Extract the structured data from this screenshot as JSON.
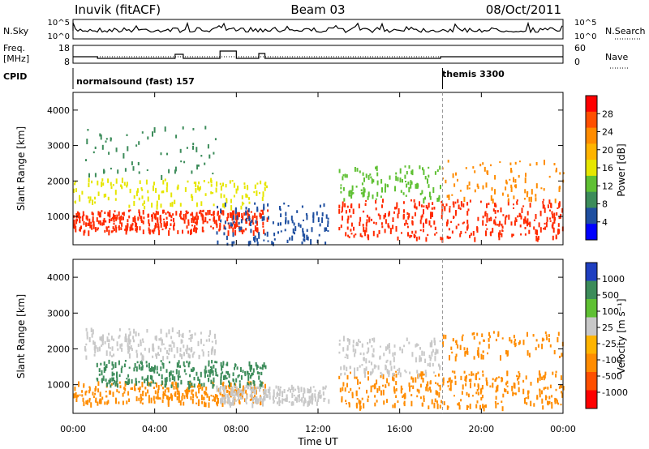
{
  "header": {
    "station": "Inuvik (fitACF)",
    "beam": "Beam 03",
    "date": "08/Oct/2011"
  },
  "strips": {
    "nsky_label": "N.Sky",
    "nsearch_label": "N.Search",
    "nsky_ticks": [
      "10^5",
      "10^0"
    ],
    "nsearch_ticks": [
      "10^5",
      "10^0"
    ],
    "freq_label": "Freq.",
    "freq_unit": "[MHz]",
    "freq_ticks": [
      "18",
      "8"
    ],
    "nave_label": "Nave",
    "nave_ticks": [
      "60",
      "0"
    ],
    "cpid_label": "CPID",
    "cpid_segments": [
      {
        "name": "normalsound (fast) 157",
        "start_hour": 0
      },
      {
        "name": "themis 3300",
        "start_hour": 18.1
      }
    ]
  },
  "chart_data": [
    {
      "type": "heatmap",
      "title": "",
      "xlabel": "Time UT",
      "ylabel": "Slant Range [km]",
      "xlim": [
        0,
        24
      ],
      "ylim": [
        200,
        4500
      ],
      "xticks": [
        "00:00",
        "04:00",
        "08:00",
        "12:00",
        "16:00",
        "20:00",
        "00:00"
      ],
      "yticks": [
        1000,
        2000,
        3000,
        4000
      ],
      "colorbar": {
        "label": "Power [dB]",
        "ticks": [
          28,
          24,
          20,
          16,
          12,
          8,
          4
        ],
        "colors": [
          "#ff0000",
          "#ff4f00",
          "#ff8c00",
          "#ffb400",
          "#e6e600",
          "#5fc033",
          "#3c8c5a",
          "#1f4fa0",
          "#0000ff"
        ]
      },
      "scatter_regions": [
        {
          "t": [
            0.0,
            9.5
          ],
          "r": [
            600,
            1200
          ],
          "color": "#ff2a00",
          "density": 0.9
        },
        {
          "t": [
            0.0,
            9.5
          ],
          "r": [
            1300,
            2100
          ],
          "color": "#e6e600",
          "density": 0.35
        },
        {
          "t": [
            0.5,
            7.0
          ],
          "r": [
            2100,
            3600
          ],
          "color": "#3c8c5a",
          "density": 0.15
        },
        {
          "t": [
            7.0,
            12.5
          ],
          "r": [
            250,
            1400
          ],
          "color": "#1f4fa0",
          "density": 0.3
        },
        {
          "t": [
            13.0,
            24.0
          ],
          "r": [
            400,
            1500
          ],
          "color": "#ff2a00",
          "density": 0.8
        },
        {
          "t": [
            13.0,
            18.0
          ],
          "r": [
            1500,
            2500
          ],
          "color": "#5fc033",
          "density": 0.25
        },
        {
          "t": [
            18.0,
            24.0
          ],
          "r": [
            1500,
            2600
          ],
          "color": "#ff8c00",
          "density": 0.2
        }
      ]
    },
    {
      "type": "heatmap",
      "title": "",
      "xlabel": "Time UT",
      "ylabel": "Slant Range [km]",
      "xlim": [
        0,
        24
      ],
      "ylim": [
        200,
        4500
      ],
      "xticks": [
        "00:00",
        "04:00",
        "08:00",
        "12:00",
        "16:00",
        "20:00",
        "00:00"
      ],
      "yticks": [
        1000,
        2000,
        3000,
        4000
      ],
      "colorbar": {
        "label": "Velocity [m s⁻¹]",
        "ticks": [
          1000,
          500,
          100,
          25,
          -25,
          -100,
          -500,
          -1000
        ],
        "colors": [
          "#1f3fc0",
          "#3c8c5a",
          "#5fc033",
          "#c8c8c8",
          "#ffb400",
          "#ff8c00",
          "#ff4f00",
          "#ff0000"
        ]
      },
      "scatter_regions": [
        {
          "t": [
            0.0,
            9.5
          ],
          "r": [
            500,
            1100
          ],
          "color": "#ff8c00",
          "density": 0.7
        },
        {
          "t": [
            1.0,
            9.5
          ],
          "r": [
            1000,
            1700
          ],
          "color": "#3c8c5a",
          "density": 0.6
        },
        {
          "t": [
            0.5,
            7.0
          ],
          "r": [
            1800,
            2600
          ],
          "color": "#c8c8c8",
          "density": 0.45
        },
        {
          "t": [
            7.0,
            12.5
          ],
          "r": [
            500,
            1000
          ],
          "color": "#c8c8c8",
          "density": 0.55
        },
        {
          "t": [
            13.0,
            24.0
          ],
          "r": [
            400,
            1400
          ],
          "color": "#ff8c00",
          "density": 0.75
        },
        {
          "t": [
            13.0,
            18.0
          ],
          "r": [
            1300,
            2400
          ],
          "color": "#c8c8c8",
          "density": 0.35
        },
        {
          "t": [
            18.0,
            24.0
          ],
          "r": [
            1800,
            2500
          ],
          "color": "#ff8c00",
          "density": 0.2
        }
      ]
    }
  ]
}
